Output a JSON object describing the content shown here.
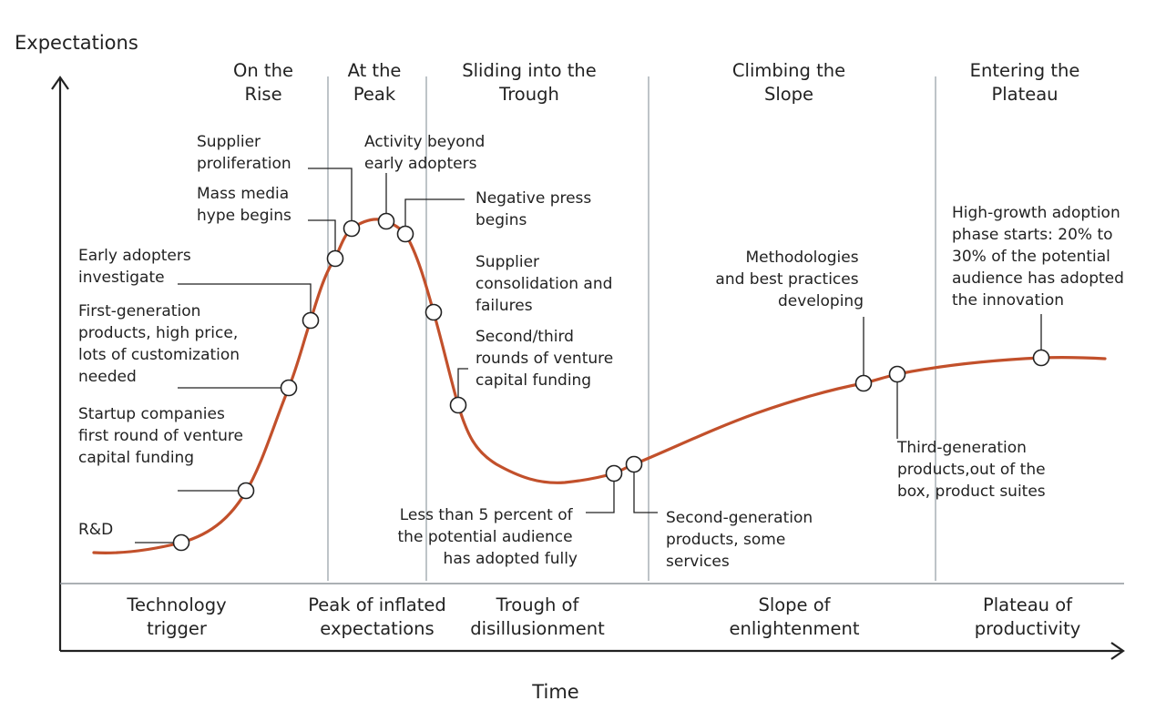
{
  "axes": {
    "y_label": "Expectations",
    "x_label": "Time"
  },
  "phases": [
    {
      "lines": [
        "On the",
        "Rise"
      ]
    },
    {
      "lines": [
        "At the",
        "Peak"
      ]
    },
    {
      "lines": [
        "Sliding into the",
        "Trough"
      ]
    },
    {
      "lines": [
        "Climbing the",
        "Slope"
      ]
    },
    {
      "lines": [
        "Entering the",
        "Plateau"
      ]
    }
  ],
  "stages": [
    {
      "lines": [
        "Technology",
        "trigger"
      ]
    },
    {
      "lines": [
        "Peak of inflated",
        "expectations"
      ]
    },
    {
      "lines": [
        "Trough of",
        "disillusionment"
      ]
    },
    {
      "lines": [
        "Slope of",
        "enlightenment"
      ]
    },
    {
      "lines": [
        "Plateau of",
        "productivity"
      ]
    }
  ],
  "annotations": [
    {
      "id": "r-and-d",
      "lines": [
        "R&D"
      ]
    },
    {
      "id": "startup-funding",
      "lines": [
        "Startup companies",
        "first round of venture",
        "capital funding"
      ]
    },
    {
      "id": "first-gen-products",
      "lines": [
        "First-generation",
        "products, high price,",
        "lots of customization",
        "needed"
      ]
    },
    {
      "id": "early-adopters",
      "lines": [
        "Early adopters",
        "investigate"
      ]
    },
    {
      "id": "mass-media-hype",
      "lines": [
        "Mass media",
        "hype begins"
      ]
    },
    {
      "id": "supplier-proliferation",
      "lines": [
        "Supplier",
        "proliferation"
      ]
    },
    {
      "id": "activity-beyond",
      "lines": [
        "Activity beyond",
        "early adopters"
      ]
    },
    {
      "id": "negative-press",
      "lines": [
        "Negative press",
        "begins"
      ]
    },
    {
      "id": "supplier-consolidation",
      "lines": [
        "Supplier",
        "consolidation and",
        "failures"
      ]
    },
    {
      "id": "venture-rounds",
      "lines": [
        "Second/third",
        "rounds of venture",
        "capital funding"
      ]
    },
    {
      "id": "less-than-5",
      "lines": [
        "Less than 5 percent of",
        "the potential audience",
        "has adopted fully"
      ]
    },
    {
      "id": "second-gen-products",
      "lines": [
        "Second-generation",
        "products, some",
        "services"
      ]
    },
    {
      "id": "methodologies",
      "lines": [
        "Methodologies",
        "and best practices",
        "developing"
      ]
    },
    {
      "id": "third-gen-products",
      "lines": [
        "Third-generation",
        "products,out of the",
        "box, product suites"
      ]
    },
    {
      "id": "high-growth",
      "lines": [
        "High-growth adoption",
        "phase starts: 20% to",
        "30% of the potential",
        "audience has adopted",
        "the innovation"
      ]
    }
  ],
  "colors": {
    "curve": "#c2502b",
    "divider": "#a9b0b6",
    "text": "#222222",
    "marker_fill": "#ffffff"
  }
}
